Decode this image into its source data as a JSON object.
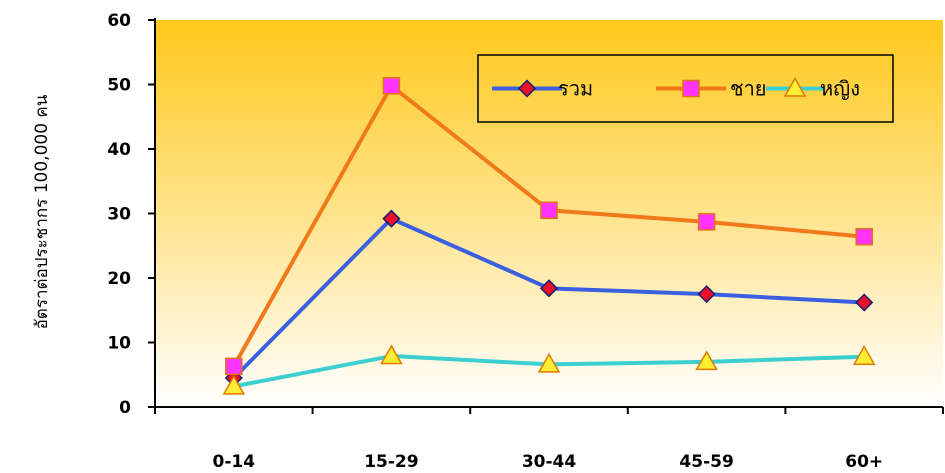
{
  "chart_data": {
    "type": "line",
    "categories": [
      "0-14",
      "15-29",
      "30-44",
      "45-59",
      "60+"
    ],
    "ylabel": "อัตราต่อประชากร 100,000 คน",
    "ylim": [
      0,
      60
    ],
    "yticks": [
      0,
      10,
      20,
      30,
      40,
      50,
      60
    ],
    "grid": false,
    "legend_position": "top-right",
    "background": "gradient-yellow",
    "series": [
      {
        "name": "รวม",
        "values": [
          4.5,
          29.2,
          18.4,
          17.5,
          16.2
        ],
        "color": "#3a5fe0",
        "marker": "diamond",
        "marker_color": "#e8102a"
      },
      {
        "name": "ชาย",
        "values": [
          6.3,
          49.8,
          30.5,
          28.7,
          26.4
        ],
        "color": "#f07a1a",
        "marker": "square",
        "marker_color": "#ff33ff"
      },
      {
        "name": "หญิง",
        "values": [
          3.2,
          7.9,
          6.6,
          7.0,
          7.8
        ],
        "color": "#3ccfcf",
        "marker": "triangle",
        "marker_color": "#ffee33"
      }
    ]
  }
}
